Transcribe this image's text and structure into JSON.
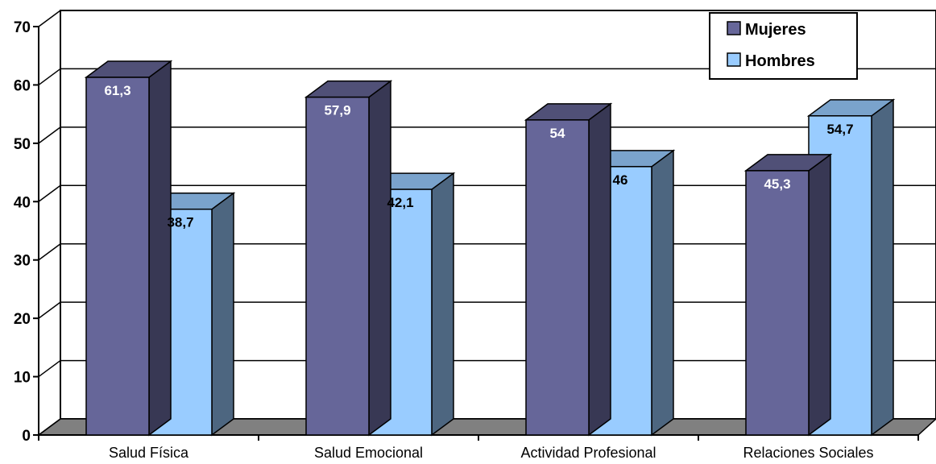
{
  "chart_data": {
    "type": "bar",
    "title": "",
    "xlabel": "",
    "ylabel": "",
    "ylim": [
      0,
      70
    ],
    "yticks": [
      "0",
      "10",
      "20",
      "30",
      "40",
      "50",
      "60",
      "70"
    ],
    "categories": [
      "Salud Física",
      "Salud Emocional",
      "Actividad Profesional",
      "Relaciones Sociales"
    ],
    "series": [
      {
        "name": "Mujeres",
        "values": [
          61.3,
          57.9,
          54,
          45.3
        ],
        "labels": [
          "61,3",
          "57,9",
          "54",
          "45,3"
        ],
        "color": "#666699",
        "label_color": "#ffffff"
      },
      {
        "name": "Hombres",
        "values": [
          38.7,
          42.1,
          46,
          54.7
        ],
        "labels": [
          "38,7",
          "42,1",
          "46",
          "54,7"
        ],
        "color": "#99ccff",
        "label_color": "#000000"
      }
    ],
    "grid": true,
    "legend": "top-right",
    "style": "3d"
  }
}
